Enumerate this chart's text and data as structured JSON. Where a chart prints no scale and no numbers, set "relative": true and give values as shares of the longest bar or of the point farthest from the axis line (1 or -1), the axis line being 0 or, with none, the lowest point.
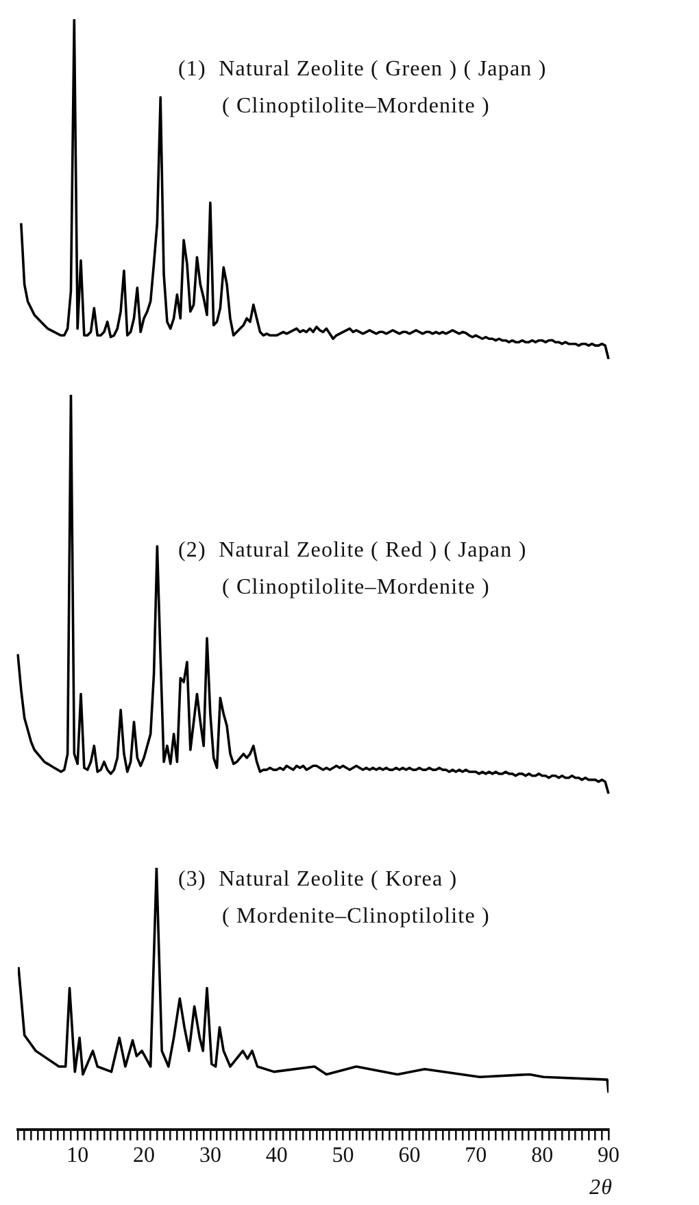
{
  "chart_data": [
    {
      "type": "line",
      "relative": true,
      "title": "(1)  Natural Zeolite ( Green ) ( Japan )",
      "subtitle": "( Clinoptilolite–Mordenite )",
      "color": "#000000",
      "tick_labels": false,
      "categories": [
        null,
        null,
        null,
        null,
        null,
        null,
        null,
        null,
        null,
        null,
        null,
        null,
        null,
        null,
        null,
        null,
        null,
        null,
        null,
        null,
        null,
        null,
        null,
        null,
        null,
        null,
        null,
        null,
        null,
        null,
        null,
        null,
        null,
        null,
        null,
        null,
        null,
        null,
        null,
        null,
        null,
        null,
        null,
        null,
        null,
        null,
        null,
        null,
        null,
        null,
        null,
        null,
        null,
        null,
        null,
        null,
        null,
        null,
        null,
        null,
        null,
        null,
        null,
        null,
        null,
        null,
        null,
        null,
        null,
        null,
        null,
        null,
        null,
        null,
        null,
        null,
        null,
        null,
        null,
        null,
        null,
        null,
        null,
        null,
        null,
        null,
        null,
        null,
        null,
        null,
        null,
        null,
        null,
        null,
        null,
        null,
        null,
        null,
        null,
        null,
        null,
        null,
        null,
        null,
        null,
        null,
        null,
        null,
        null,
        null,
        null,
        null,
        null,
        null,
        null,
        null,
        null,
        null,
        null,
        null,
        null,
        null,
        null,
        null,
        null,
        null,
        null,
        null,
        null,
        null,
        null,
        null,
        null,
        null,
        null,
        null,
        null,
        null,
        null,
        null,
        null,
        null,
        null,
        null,
        null,
        null,
        null,
        null,
        null,
        null,
        null,
        null,
        null,
        null,
        null,
        null,
        null,
        null,
        null,
        null,
        null,
        null,
        null,
        null,
        null,
        null,
        null,
        null,
        null,
        null,
        null,
        null,
        null,
        null,
        null,
        null,
        null,
        null
      ],
      "values": [
        0.4,
        0.22,
        0.17,
        0.15,
        0.13,
        0.12,
        0.11,
        0.1,
        0.09,
        0.085,
        0.08,
        0.075,
        0.07,
        0.07,
        0.09,
        0.2,
        1.0,
        0.09,
        0.29,
        0.07,
        0.07,
        0.08,
        0.15,
        0.07,
        0.07,
        0.08,
        0.11,
        0.065,
        0.07,
        0.09,
        0.14,
        0.26,
        0.07,
        0.08,
        0.12,
        0.21,
        0.08,
        0.12,
        0.14,
        0.17,
        0.28,
        0.4,
        0.77,
        0.25,
        0.11,
        0.09,
        0.12,
        0.19,
        0.12,
        0.35,
        0.28,
        0.14,
        0.16,
        0.3,
        0.22,
        0.18,
        0.13,
        0.46,
        0.1,
        0.11,
        0.15,
        0.27,
        0.22,
        0.12,
        0.07,
        0.08,
        0.09,
        0.1,
        0.12,
        0.11,
        0.16,
        0.12,
        0.08,
        0.07,
        0.075,
        0.07,
        0.07,
        0.07,
        0.075,
        0.08,
        0.075,
        0.08,
        0.085,
        0.09,
        0.08,
        0.085,
        0.08,
        0.09,
        0.08,
        0.095,
        0.085,
        0.08,
        0.09,
        0.075,
        0.06,
        0.07,
        0.075,
        0.08,
        0.085,
        0.09,
        0.08,
        0.085,
        0.08,
        0.075,
        0.08,
        0.085,
        0.08,
        0.075,
        0.08,
        0.08,
        0.075,
        0.08,
        0.085,
        0.08,
        0.075,
        0.08,
        0.08,
        0.075,
        0.08,
        0.085,
        0.08,
        0.075,
        0.08,
        0.08,
        0.075,
        0.08,
        0.075,
        0.08,
        0.075,
        0.08,
        0.085,
        0.08,
        0.075,
        0.08,
        0.077,
        0.07,
        0.065,
        0.07,
        0.065,
        0.06,
        0.065,
        0.06,
        0.06,
        0.055,
        0.06,
        0.055,
        0.055,
        0.05,
        0.055,
        0.05,
        0.05,
        0.055,
        0.05,
        0.05,
        0.055,
        0.05,
        0.055,
        0.055,
        0.05,
        0.055,
        0.056,
        0.05,
        0.05,
        0.045,
        0.05,
        0.045,
        0.045,
        0.045,
        0.04,
        0.045,
        0.045,
        0.04,
        0.045,
        0.04,
        0.04,
        0.045,
        0.04,
        0
      ]
    },
    {
      "type": "line",
      "relative": true,
      "title": "(2)  Natural Zeolite ( Red ) ( Japan )",
      "subtitle": "( Clinoptilolite–Mordenite )",
      "color": "#000000",
      "tick_labels": false,
      "categories": [
        null,
        null,
        null,
        null,
        null,
        null,
        null,
        null,
        null,
        null,
        null,
        null,
        null,
        null,
        null,
        null,
        null,
        null,
        null,
        null,
        null,
        null,
        null,
        null,
        null,
        null,
        null,
        null,
        null,
        null,
        null,
        null,
        null,
        null,
        null,
        null,
        null,
        null,
        null,
        null,
        null,
        null,
        null,
        null,
        null,
        null,
        null,
        null,
        null,
        null,
        null,
        null,
        null,
        null,
        null,
        null,
        null,
        null,
        null,
        null,
        null,
        null,
        null,
        null,
        null,
        null,
        null,
        null,
        null,
        null,
        null,
        null,
        null,
        null,
        null,
        null,
        null,
        null,
        null,
        null,
        null,
        null,
        null,
        null,
        null,
        null,
        null,
        null,
        null,
        null,
        null,
        null,
        null,
        null,
        null,
        null,
        null,
        null,
        null,
        null,
        null,
        null,
        null,
        null,
        null,
        null,
        null,
        null,
        null,
        null,
        null,
        null,
        null,
        null,
        null,
        null,
        null,
        null,
        null,
        null,
        null,
        null,
        null,
        null,
        null,
        null,
        null,
        null,
        null,
        null,
        null,
        null,
        null,
        null,
        null,
        null,
        null,
        null,
        null,
        null,
        null,
        null,
        null,
        null,
        null,
        null,
        null,
        null,
        null,
        null,
        null,
        null,
        null,
        null,
        null,
        null,
        null,
        null,
        null,
        null,
        null,
        null,
        null,
        null,
        null,
        null,
        null,
        null,
        null,
        null,
        null,
        null,
        null,
        null,
        null,
        null,
        null,
        null,
        null
      ],
      "values": [
        0.35,
        0.26,
        0.19,
        0.16,
        0.13,
        0.11,
        0.1,
        0.09,
        0.08,
        0.075,
        0.07,
        0.065,
        0.06,
        0.055,
        0.06,
        0.1,
        1.0,
        0.1,
        0.075,
        0.25,
        0.065,
        0.06,
        0.08,
        0.12,
        0.055,
        0.06,
        0.08,
        0.06,
        0.05,
        0.06,
        0.09,
        0.21,
        0.1,
        0.055,
        0.08,
        0.18,
        0.09,
        0.07,
        0.09,
        0.12,
        0.15,
        0.3,
        0.62,
        0.34,
        0.08,
        0.12,
        0.075,
        0.15,
        0.08,
        0.29,
        0.28,
        0.33,
        0.11,
        0.18,
        0.25,
        0.18,
        0.12,
        0.39,
        0.2,
        0.09,
        0.065,
        0.24,
        0.2,
        0.17,
        0.1,
        0.075,
        0.08,
        0.09,
        0.1,
        0.09,
        0.1,
        0.12,
        0.08,
        0.055,
        0.06,
        0.06,
        0.065,
        0.06,
        0.06,
        0.065,
        0.06,
        0.07,
        0.065,
        0.06,
        0.07,
        0.065,
        0.07,
        0.06,
        0.065,
        0.07,
        0.07,
        0.065,
        0.06,
        0.065,
        0.06,
        0.065,
        0.07,
        0.065,
        0.07,
        0.065,
        0.06,
        0.065,
        0.07,
        0.065,
        0.06,
        0.065,
        0.06,
        0.065,
        0.06,
        0.065,
        0.06,
        0.065,
        0.06,
        0.06,
        0.065,
        0.06,
        0.065,
        0.06,
        0.065,
        0.06,
        0.06,
        0.065,
        0.06,
        0.06,
        0.065,
        0.06,
        0.06,
        0.065,
        0.06,
        0.06,
        0.055,
        0.06,
        0.055,
        0.06,
        0.055,
        0.06,
        0.055,
        0.055,
        0.055,
        0.05,
        0.055,
        0.05,
        0.055,
        0.05,
        0.055,
        0.05,
        0.05,
        0.055,
        0.05,
        0.05,
        0.045,
        0.05,
        0.05,
        0.045,
        0.05,
        0.045,
        0.045,
        0.05,
        0.045,
        0.045,
        0.04,
        0.045,
        0.045,
        0.04,
        0.045,
        0.04,
        0.04,
        0.045,
        0.04,
        0.04,
        0.035,
        0.04,
        0.035,
        0.035,
        0.035,
        0.03,
        0.035,
        0.03,
        0
      ]
    },
    {
      "type": "line",
      "relative": true,
      "title": "(3)  Natural Zeolite ( Korea )",
      "subtitle": "( Mordenite–Clinoptilolite )",
      "xlabel": "2θ",
      "color": "#000000",
      "xlim": [
        1,
        90
      ],
      "xticks": [
        {
          "value": 1,
          "label": null
        },
        {
          "value": 2,
          "label": null
        },
        {
          "value": 3,
          "label": null
        },
        {
          "value": 4,
          "label": null
        },
        {
          "value": 5,
          "label": null
        },
        {
          "value": 6,
          "label": null
        },
        {
          "value": 7,
          "label": null
        },
        {
          "value": 8,
          "label": null
        },
        {
          "value": 9,
          "label": null
        },
        10,
        {
          "value": 11,
          "label": null
        },
        {
          "value": 12,
          "label": null
        },
        {
          "value": 13,
          "label": null
        },
        {
          "value": 14,
          "label": null
        },
        {
          "value": 15,
          "label": null
        },
        {
          "value": 16,
          "label": null
        },
        {
          "value": 17,
          "label": null
        },
        {
          "value": 18,
          "label": null
        },
        {
          "value": 19,
          "label": null
        },
        20,
        {
          "value": 21,
          "label": null
        },
        {
          "value": 22,
          "label": null
        },
        {
          "value": 23,
          "label": null
        },
        {
          "value": 24,
          "label": null
        },
        {
          "value": 25,
          "label": null
        },
        {
          "value": 26,
          "label": null
        },
        {
          "value": 27,
          "label": null
        },
        {
          "value": 28,
          "label": null
        },
        {
          "value": 29,
          "label": null
        },
        30,
        {
          "value": 31,
          "label": null
        },
        {
          "value": 32,
          "label": null
        },
        {
          "value": 33,
          "label": null
        },
        {
          "value": 34,
          "label": null
        },
        {
          "value": 35,
          "label": null
        },
        {
          "value": 36,
          "label": null
        },
        {
          "value": 37,
          "label": null
        },
        {
          "value": 38,
          "label": null
        },
        {
          "value": 39,
          "label": null
        },
        40,
        {
          "value": 41,
          "label": null
        },
        {
          "value": 42,
          "label": null
        },
        {
          "value": 43,
          "label": null
        },
        {
          "value": 44,
          "label": null
        },
        {
          "value": 45,
          "label": null
        },
        {
          "value": 46,
          "label": null
        },
        {
          "value": 47,
          "label": null
        },
        {
          "value": 48,
          "label": null
        },
        {
          "value": 49,
          "label": null
        },
        50,
        {
          "value": 51,
          "label": null
        },
        {
          "value": 52,
          "label": null
        },
        {
          "value": 53,
          "label": null
        },
        {
          "value": 54,
          "label": null
        },
        {
          "value": 55,
          "label": null
        },
        {
          "value": 56,
          "label": null
        },
        {
          "value": 57,
          "label": null
        },
        {
          "value": 58,
          "label": null
        },
        {
          "value": 59,
          "label": null
        },
        60,
        {
          "value": 61,
          "label": null
        },
        {
          "value": 62,
          "label": null
        },
        {
          "value": 63,
          "label": null
        },
        {
          "value": 64,
          "label": null
        },
        {
          "value": 65,
          "label": null
        },
        {
          "value": 66,
          "label": null
        },
        {
          "value": 67,
          "label": null
        },
        {
          "value": 68,
          "label": null
        },
        {
          "value": 69,
          "label": null
        },
        70,
        {
          "value": 71,
          "label": null
        },
        {
          "value": 72,
          "label": null
        },
        {
          "value": 73,
          "label": null
        },
        {
          "value": 74,
          "label": null
        },
        {
          "value": 75,
          "label": null
        },
        {
          "value": 76,
          "label": null
        },
        {
          "value": 77,
          "label": null
        },
        {
          "value": 78,
          "label": null
        },
        {
          "value": 79,
          "label": null
        },
        80,
        {
          "value": 81,
          "label": null
        },
        {
          "value": 82,
          "label": null
        },
        {
          "value": 83,
          "label": null
        },
        {
          "value": 84,
          "label": null
        },
        {
          "value": 85,
          "label": null
        },
        {
          "value": 86,
          "label": null
        },
        {
          "value": 87,
          "label": null
        },
        {
          "value": 88,
          "label": null
        },
        {
          "value": 89,
          "label": null
        },
        90
      ],
      "x": [
        1.1,
        2.0,
        3.7,
        7.2,
        8.2,
        8.8,
        9.6,
        10.3,
        10.8,
        12.3,
        13.0,
        15.1,
        16.3,
        17.2,
        18.3,
        18.9,
        19.7,
        21.0,
        21.9,
        22.7,
        23.7,
        24.5,
        25.4,
        26.1,
        26.8,
        27.6,
        28.4,
        28.9,
        29.5,
        30.2,
        30.8,
        31.4,
        32.0,
        33.0,
        34.9,
        35.6,
        36.3,
        37.1,
        39.6,
        45.7,
        47.5,
        52.0,
        58.2,
        62.3,
        70.6,
        78.1,
        80.2,
        89.8,
        90
      ],
      "values": [
        0.62,
        0.36,
        0.3,
        0.24,
        0.24,
        0.54,
        0.22,
        0.35,
        0.21,
        0.3,
        0.24,
        0.22,
        0.35,
        0.24,
        0.34,
        0.28,
        0.3,
        0.24,
        1.0,
        0.3,
        0.24,
        0.35,
        0.5,
        0.39,
        0.3,
        0.47,
        0.35,
        0.3,
        0.54,
        0.25,
        0.24,
        0.39,
        0.3,
        0.24,
        0.3,
        0.27,
        0.3,
        0.24,
        0.22,
        0.24,
        0.21,
        0.24,
        0.21,
        0.23,
        0.2,
        0.21,
        0.2,
        0.19,
        0.14
      ]
    }
  ]
}
